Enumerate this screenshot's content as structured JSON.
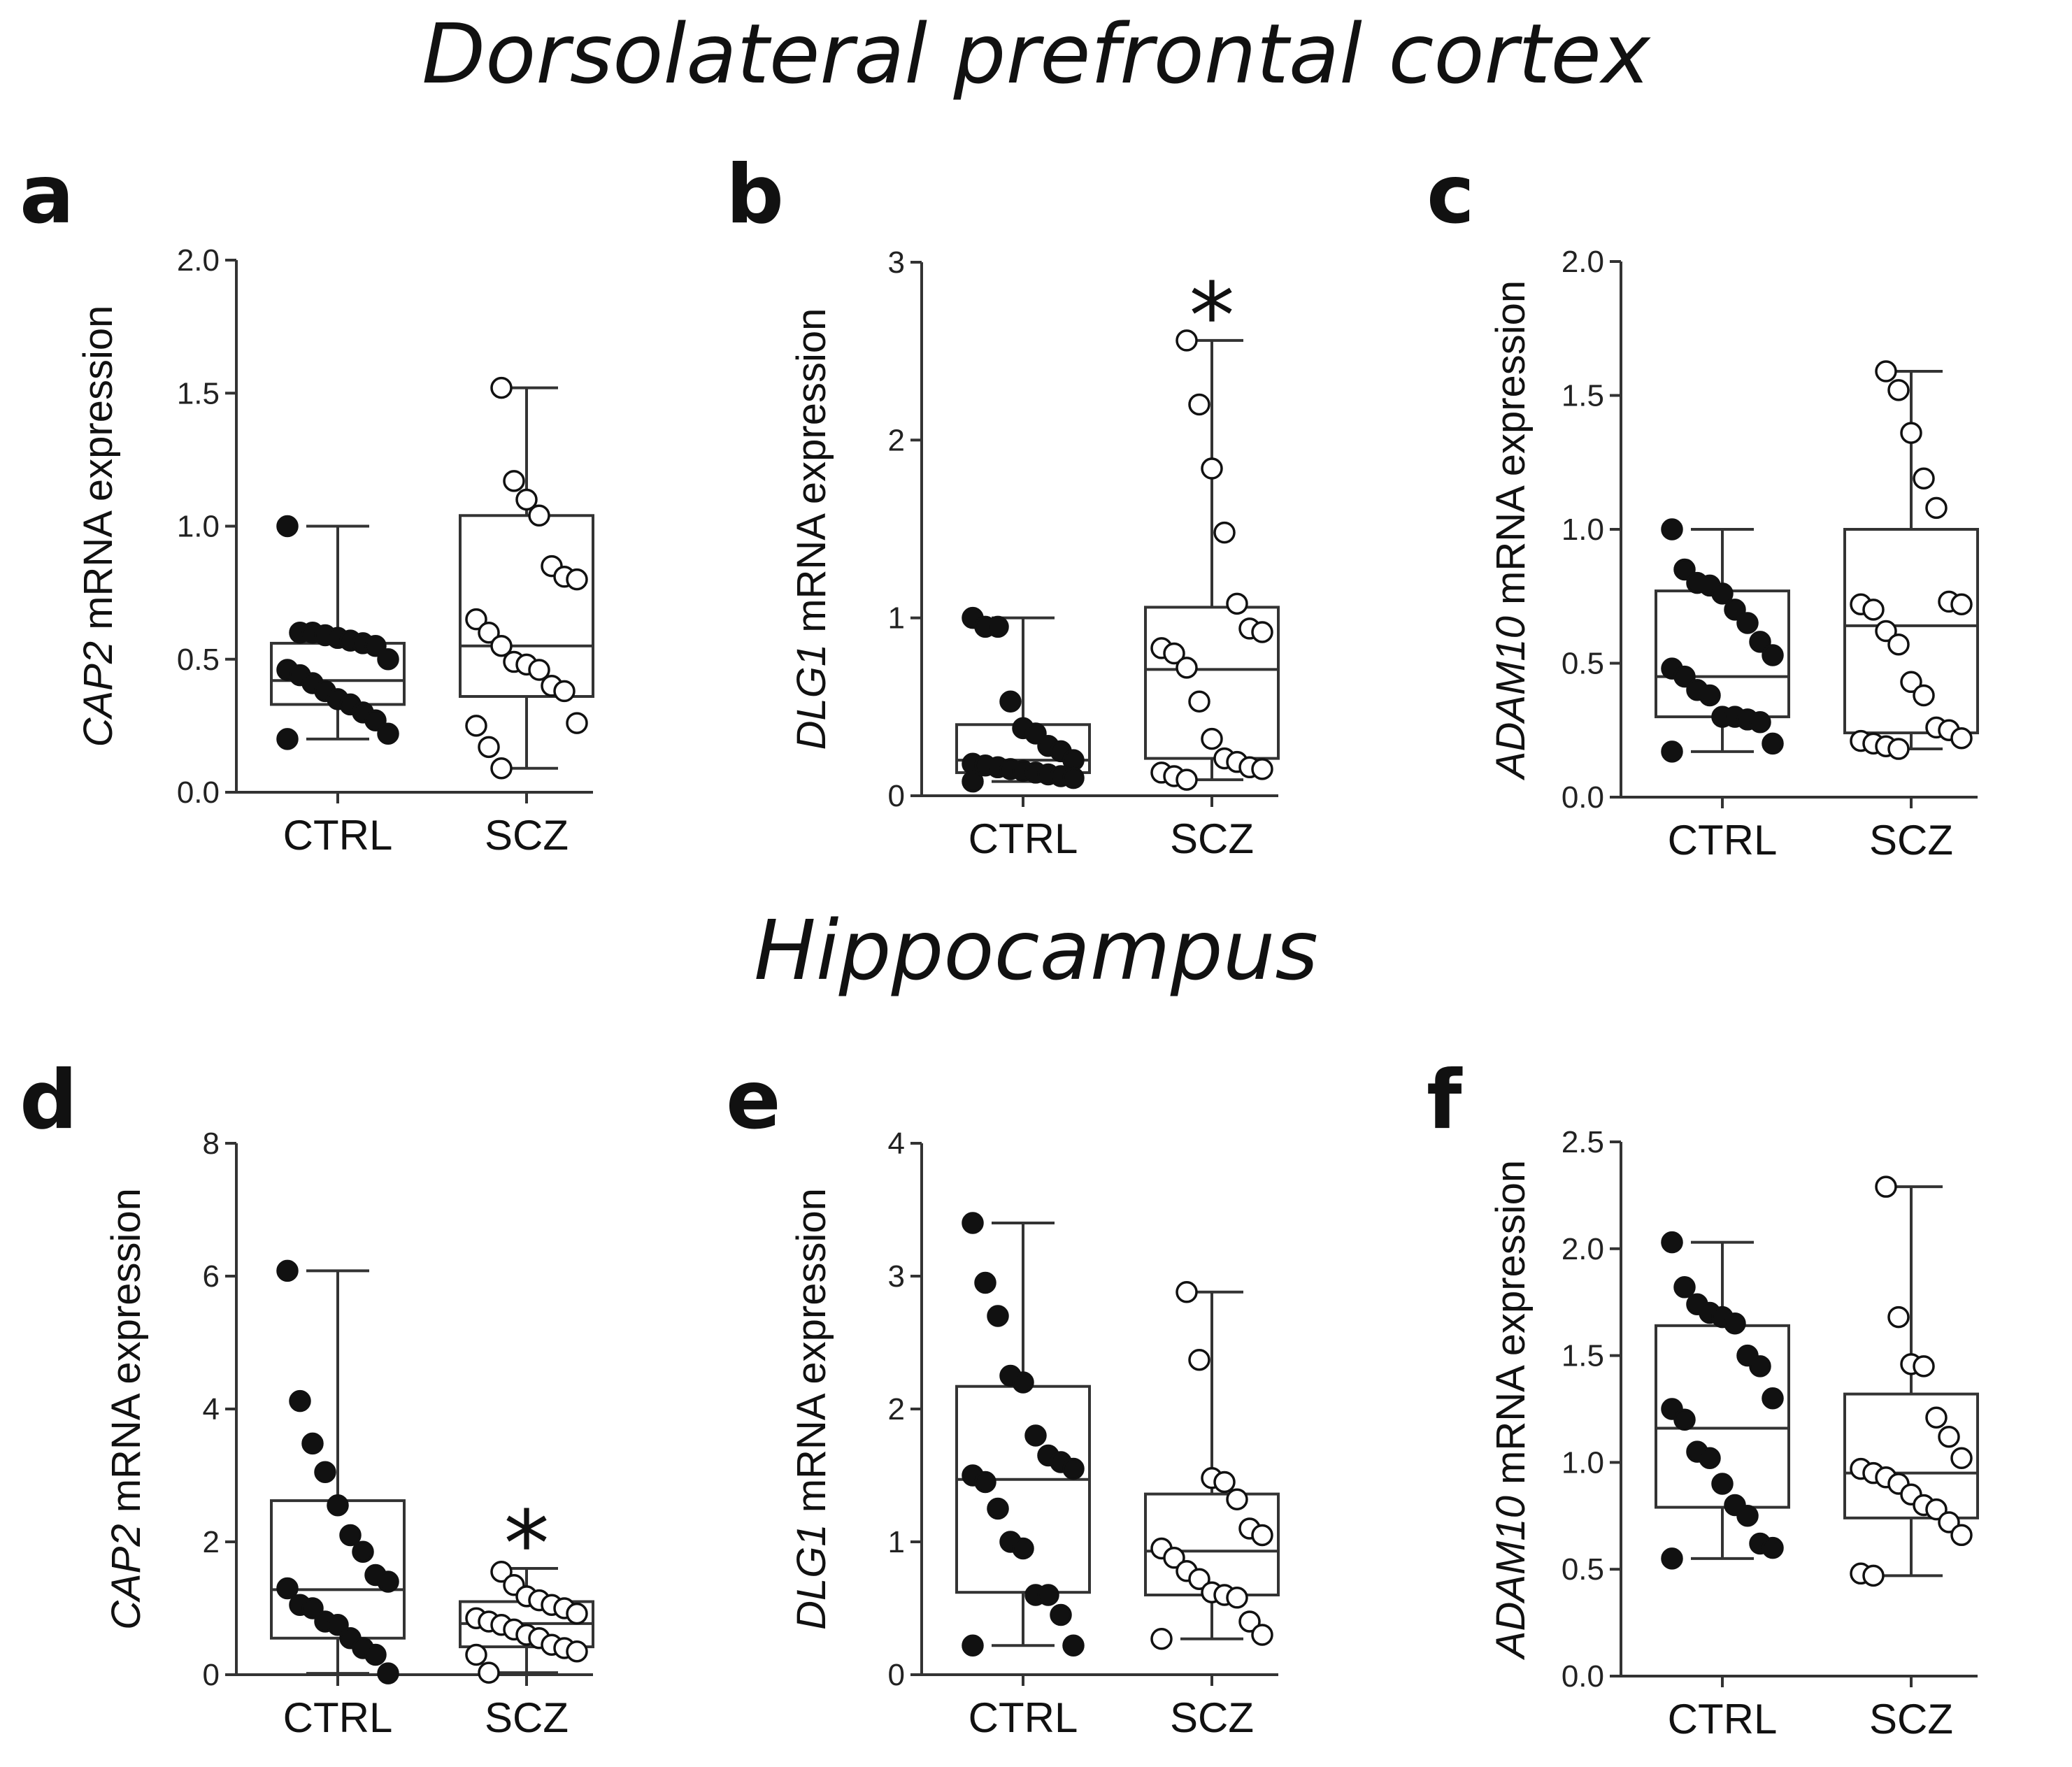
{
  "titles": {
    "top": "Dorsolateral prefrontal cortex",
    "bottom": "Hippocampus"
  },
  "chart_data": [
    {
      "panel": "a",
      "type": "box",
      "region": "top",
      "ylabel_gene": "CAP2",
      "ylabel_rest": " mRNA expression",
      "ylim": [
        0,
        2.0
      ],
      "yticks": [
        "0.0",
        "0.5",
        "1.0",
        "1.5",
        "2.0"
      ],
      "ytick_values": [
        0,
        0.5,
        1.0,
        1.5,
        2.0
      ],
      "categories": [
        "CTRL",
        "SCZ"
      ],
      "series": [
        {
          "name": "CTRL",
          "fill": "#111111",
          "box": {
            "min": 0.2,
            "q1": 0.33,
            "median": 0.42,
            "q3": 0.56,
            "max": 1.0
          },
          "points": [
            1.0,
            0.6,
            0.6,
            0.59,
            0.58,
            0.57,
            0.56,
            0.55,
            0.5,
            0.46,
            0.44,
            0.41,
            0.38,
            0.35,
            0.33,
            0.3,
            0.27,
            0.22,
            0.2
          ]
        },
        {
          "name": "SCZ",
          "fill": "#ffffff",
          "box": {
            "min": 0.09,
            "q1": 0.36,
            "median": 0.55,
            "q3": 1.04,
            "max": 1.52
          },
          "points": [
            1.52,
            1.17,
            1.1,
            1.04,
            0.85,
            0.81,
            0.8,
            0.65,
            0.6,
            0.55,
            0.49,
            0.48,
            0.46,
            0.4,
            0.38,
            0.26,
            0.25,
            0.17,
            0.09
          ]
        }
      ],
      "significance": ""
    },
    {
      "panel": "b",
      "type": "box",
      "region": "top",
      "ylabel_gene": "DLG1",
      "ylabel_rest": " mRNA expression",
      "ylim": [
        0,
        3
      ],
      "yticks": [
        "0",
        "1",
        "2",
        "3"
      ],
      "ytick_values": [
        0,
        1,
        2,
        3
      ],
      "categories": [
        "CTRL",
        "SCZ"
      ],
      "series": [
        {
          "name": "CTRL",
          "fill": "#111111",
          "box": {
            "min": 0.08,
            "q1": 0.13,
            "median": 0.2,
            "q3": 0.4,
            "max": 1.0
          },
          "points": [
            1.0,
            0.95,
            0.95,
            0.53,
            0.38,
            0.35,
            0.28,
            0.25,
            0.2,
            0.18,
            0.17,
            0.16,
            0.15,
            0.14,
            0.13,
            0.12,
            0.11,
            0.1,
            0.08
          ]
        },
        {
          "name": "SCZ",
          "fill": "#ffffff",
          "box": {
            "min": 0.09,
            "q1": 0.21,
            "median": 0.71,
            "q3": 1.06,
            "max": 2.56
          },
          "points": [
            2.56,
            2.2,
            1.84,
            1.48,
            1.08,
            0.94,
            0.92,
            0.83,
            0.8,
            0.72,
            0.53,
            0.32,
            0.21,
            0.19,
            0.16,
            0.15,
            0.13,
            0.11,
            0.09
          ]
        }
      ],
      "significance": "*"
    },
    {
      "panel": "c",
      "type": "box",
      "region": "top",
      "ylabel_gene": "ADAM10",
      "ylabel_rest": " mRNA expression",
      "ylim": [
        0,
        2.0
      ],
      "yticks": [
        "0.0",
        "0.5",
        "1.0",
        "1.5",
        "2.0"
      ],
      "ytick_values": [
        0,
        0.5,
        1.0,
        1.5,
        2.0
      ],
      "categories": [
        "CTRL",
        "SCZ"
      ],
      "series": [
        {
          "name": "CTRL",
          "fill": "#111111",
          "box": {
            "min": 0.17,
            "q1": 0.3,
            "median": 0.45,
            "q3": 0.77,
            "max": 1.0
          },
          "points": [
            1.0,
            0.85,
            0.8,
            0.79,
            0.76,
            0.7,
            0.65,
            0.58,
            0.53,
            0.48,
            0.45,
            0.4,
            0.38,
            0.3,
            0.3,
            0.29,
            0.28,
            0.2,
            0.17
          ]
        },
        {
          "name": "SCZ",
          "fill": "#ffffff",
          "box": {
            "min": 0.18,
            "q1": 0.24,
            "median": 0.64,
            "q3": 1.0,
            "max": 1.59
          },
          "points": [
            1.59,
            1.52,
            1.36,
            1.19,
            1.08,
            0.73,
            0.72,
            0.72,
            0.7,
            0.62,
            0.57,
            0.43,
            0.38,
            0.26,
            0.25,
            0.22,
            0.21,
            0.2,
            0.19,
            0.18
          ]
        }
      ],
      "significance": ""
    },
    {
      "panel": "d",
      "type": "box",
      "region": "bottom",
      "ylabel_gene": "CAP2",
      "ylabel_rest": " mRNA expression",
      "ylim": [
        0,
        8
      ],
      "yticks": [
        "0",
        "2",
        "4",
        "6",
        "8"
      ],
      "ytick_values": [
        0,
        2,
        4,
        6,
        8
      ],
      "categories": [
        "CTRL",
        "SCZ"
      ],
      "series": [
        {
          "name": "CTRL",
          "fill": "#111111",
          "box": {
            "min": 0.02,
            "q1": 0.55,
            "median": 1.28,
            "q3": 2.62,
            "max": 6.08
          },
          "points": [
            6.08,
            4.12,
            3.48,
            3.05,
            2.55,
            2.1,
            1.85,
            1.5,
            1.4,
            1.3,
            1.05,
            1.0,
            0.8,
            0.75,
            0.55,
            0.4,
            0.3,
            0.02
          ]
        },
        {
          "name": "SCZ",
          "fill": "#ffffff",
          "box": {
            "min": 0.03,
            "q1": 0.42,
            "median": 0.77,
            "q3": 1.1,
            "max": 1.6
          },
          "points": [
            1.55,
            1.35,
            1.18,
            1.12,
            1.05,
            1.0,
            0.92,
            0.85,
            0.8,
            0.75,
            0.68,
            0.6,
            0.55,
            0.45,
            0.4,
            0.35,
            0.3,
            0.03
          ]
        }
      ],
      "significance": "*"
    },
    {
      "panel": "e",
      "type": "box",
      "region": "bottom",
      "ylabel_gene": "DLG1",
      "ylabel_rest": " mRNA expression",
      "ylim": [
        0,
        4
      ],
      "yticks": [
        "0",
        "1",
        "2",
        "3",
        "4"
      ],
      "ytick_values": [
        0,
        1,
        2,
        3,
        4
      ],
      "categories": [
        "CTRL",
        "SCZ"
      ],
      "series": [
        {
          "name": "CTRL",
          "fill": "#111111",
          "box": {
            "min": 0.22,
            "q1": 0.62,
            "median": 1.47,
            "q3": 2.17,
            "max": 3.4
          },
          "points": [
            3.4,
            2.95,
            2.7,
            2.25,
            2.2,
            1.8,
            1.65,
            1.6,
            1.55,
            1.5,
            1.45,
            1.25,
            1.0,
            0.95,
            0.6,
            0.6,
            0.45,
            0.22,
            0.22
          ]
        },
        {
          "name": "SCZ",
          "fill": "#ffffff",
          "box": {
            "min": 0.27,
            "q1": 0.6,
            "median": 0.93,
            "q3": 1.36,
            "max": 2.88
          },
          "points": [
            2.88,
            2.37,
            1.48,
            1.45,
            1.32,
            1.1,
            1.05,
            0.95,
            0.88,
            0.78,
            0.72,
            0.62,
            0.6,
            0.58,
            0.4,
            0.3,
            0.27
          ]
        }
      ],
      "significance": ""
    },
    {
      "panel": "f",
      "type": "box",
      "region": "bottom",
      "ylabel_gene": "ADAM10",
      "ylabel_rest": " mRNA expression",
      "ylim": [
        0,
        2.5
      ],
      "yticks": [
        "0.0",
        "0.5",
        "1.0",
        "1.5",
        "2.0",
        "2.5"
      ],
      "ytick_values": [
        0,
        0.5,
        1.0,
        1.5,
        2.0,
        2.5
      ],
      "categories": [
        "CTRL",
        "SCZ"
      ],
      "series": [
        {
          "name": "CTRL",
          "fill": "#111111",
          "box": {
            "min": 0.55,
            "q1": 0.79,
            "median": 1.16,
            "q3": 1.64,
            "max": 2.03
          },
          "points": [
            2.03,
            1.82,
            1.74,
            1.7,
            1.68,
            1.65,
            1.5,
            1.45,
            1.3,
            1.25,
            1.2,
            1.05,
            1.02,
            0.9,
            0.8,
            0.75,
            0.62,
            0.6,
            0.55
          ]
        },
        {
          "name": "SCZ",
          "fill": "#ffffff",
          "box": {
            "min": 0.47,
            "q1": 0.74,
            "median": 0.95,
            "q3": 1.32,
            "max": 2.29
          },
          "points": [
            2.29,
            1.68,
            1.46,
            1.45,
            1.21,
            1.12,
            1.02,
            0.97,
            0.95,
            0.93,
            0.9,
            0.85,
            0.8,
            0.78,
            0.72,
            0.66,
            0.48,
            0.47
          ]
        }
      ],
      "significance": ""
    }
  ]
}
